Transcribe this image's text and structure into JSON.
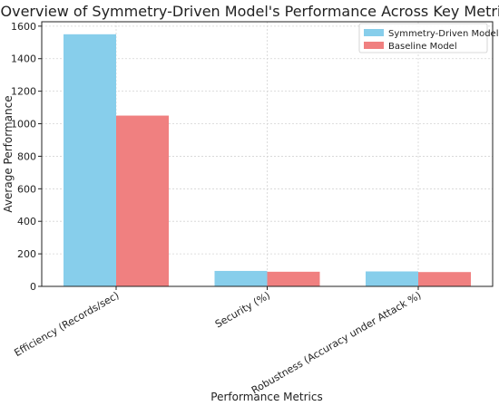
{
  "chart_data": {
    "type": "bar",
    "title": "Overview of Symmetry-Driven Model's Performance Across Key Metrics",
    "xlabel": "Performance Metrics",
    "ylabel": "Average Performance",
    "categories": [
      "Efficiency (Records/sec)",
      "Security (%)",
      "Robustness (Accuracy under Attack %)"
    ],
    "series": [
      {
        "name": "Symmetry-Driven Model",
        "color": "#87ceeb",
        "values": [
          1550,
          95,
          92
        ]
      },
      {
        "name": "Baseline Model",
        "color": "#f08080",
        "values": [
          1050,
          90,
          88
        ]
      }
    ],
    "ylim": [
      0,
      1627
    ],
    "yticks": [
      0,
      200,
      400,
      600,
      800,
      1000,
      1200,
      1400,
      1600
    ],
    "grid": true,
    "legend_position": "top-right"
  }
}
